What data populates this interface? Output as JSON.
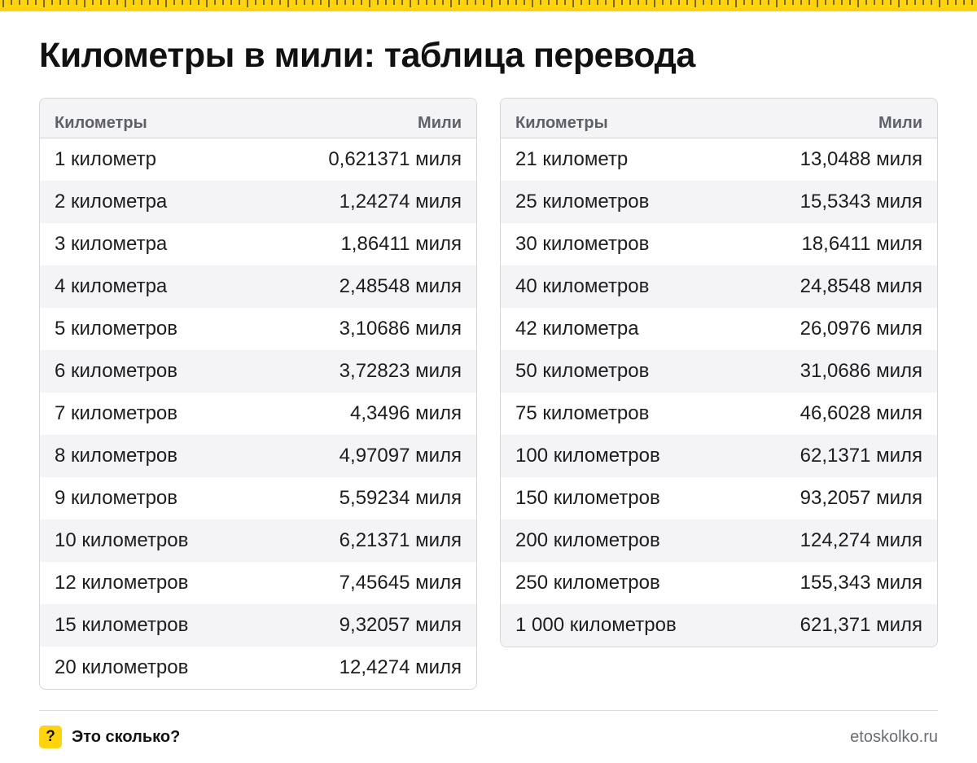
{
  "header": {
    "title": "Километры в мили: таблица перевода"
  },
  "colors": {
    "accent": "#ffd40f",
    "header_bg": "#f4f4f6",
    "border": "#d6d7da"
  },
  "tables": [
    {
      "columns": [
        "Километры",
        "Мили"
      ],
      "rows": [
        [
          "1 километр",
          "0,621371 миля"
        ],
        [
          "2 километра",
          "1,24274 миля"
        ],
        [
          "3 километра",
          "1,86411 миля"
        ],
        [
          "4 километра",
          "2,48548 миля"
        ],
        [
          "5 километров",
          "3,10686 миля"
        ],
        [
          "6 километров",
          "3,72823 миля"
        ],
        [
          "7 километров",
          "4,3496 миля"
        ],
        [
          "8 километров",
          "4,97097 миля"
        ],
        [
          "9 километров",
          "5,59234 миля"
        ],
        [
          "10 километров",
          "6,21371 миля"
        ],
        [
          "12 километров",
          "7,45645 миля"
        ],
        [
          "15 километров",
          "9,32057 миля"
        ],
        [
          "20 километров",
          "12,4274 миля"
        ]
      ]
    },
    {
      "columns": [
        "Километры",
        "Мили"
      ],
      "rows": [
        [
          "21 километр",
          "13,0488 миля"
        ],
        [
          "25 километров",
          "15,5343 миля"
        ],
        [
          "30 километров",
          "18,6411 миля"
        ],
        [
          "40 километров",
          "24,8548 миля"
        ],
        [
          "42 километра",
          "26,0976 миля"
        ],
        [
          "50 километров",
          "31,0686 миля"
        ],
        [
          "75 километров",
          "46,6028 миля"
        ],
        [
          "100 километров",
          "62,1371 миля"
        ],
        [
          "150 километров",
          "93,2057 миля"
        ],
        [
          "200 километров",
          "124,274 миля"
        ],
        [
          "250 километров",
          "155,343 миля"
        ],
        [
          "1 000 километров",
          "621,371 миля"
        ]
      ]
    }
  ],
  "footer": {
    "logo_glyph": "?",
    "brand": "Это сколько?",
    "site": "etoskolko.ru"
  }
}
